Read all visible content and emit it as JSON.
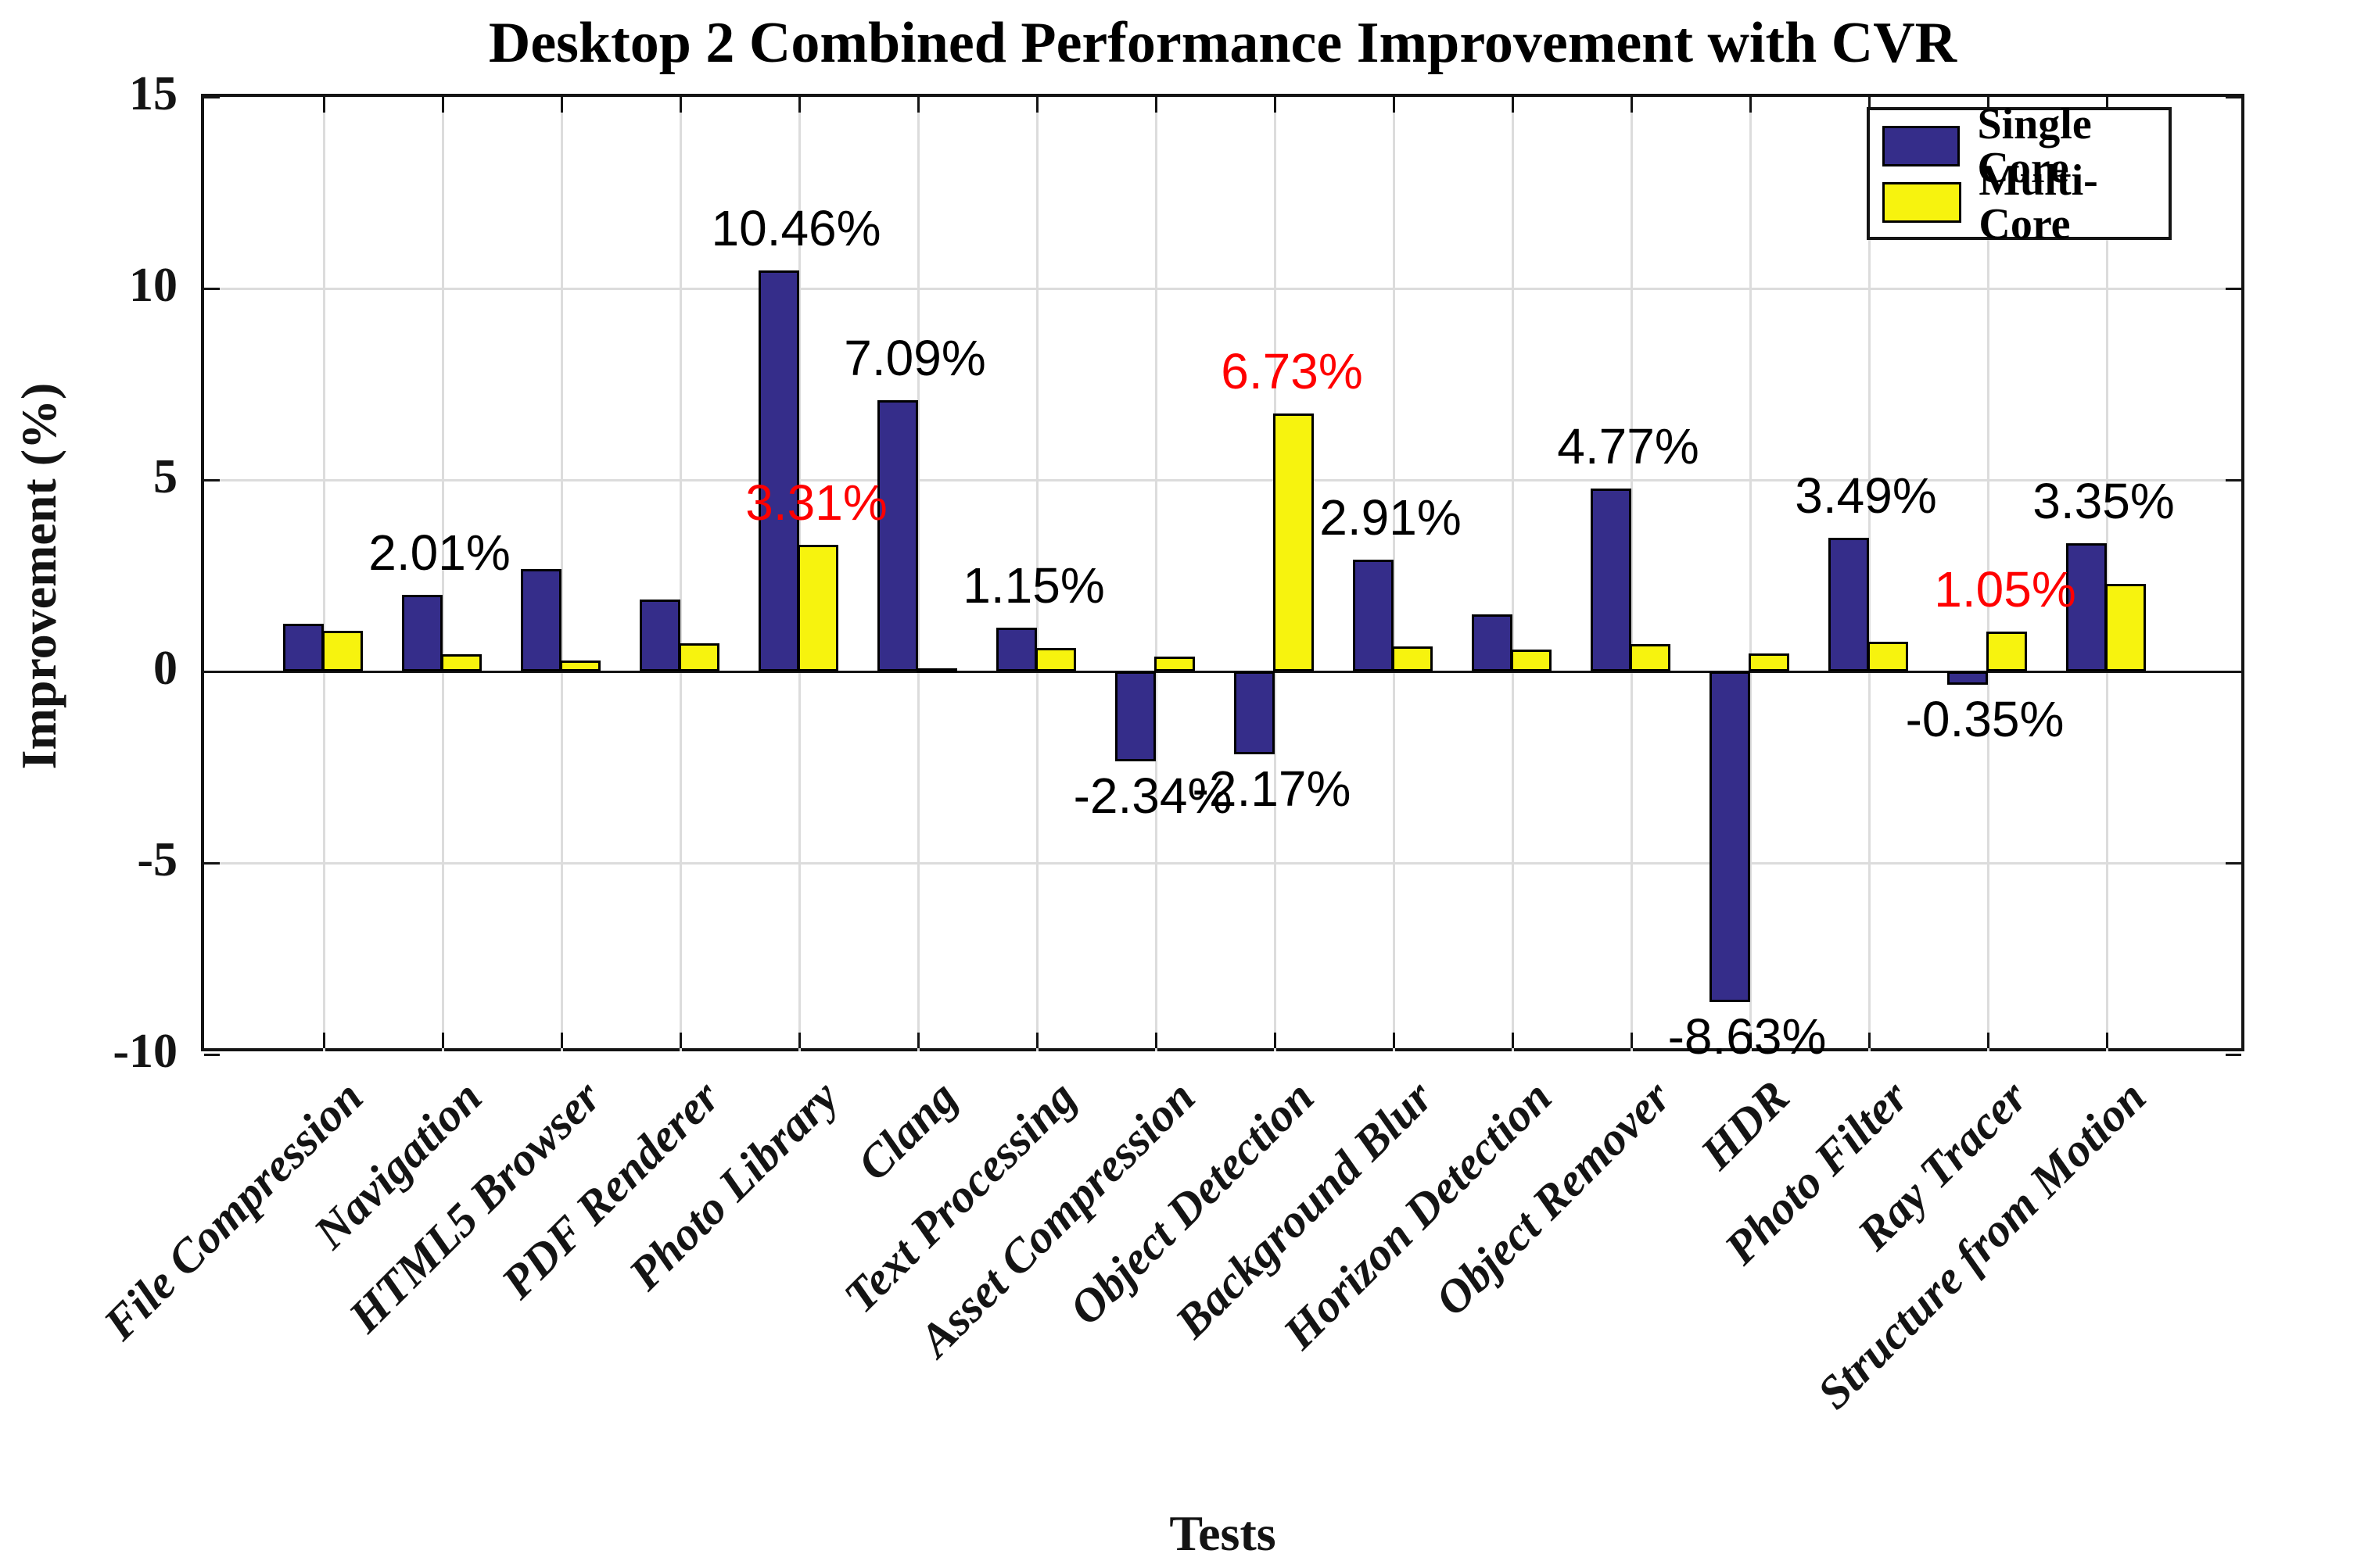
{
  "title": "Desktop 2 Combined Performance Improvement with CVR",
  "x_axis_label": "Tests",
  "y_axis_label": "Improvement (%)",
  "y_tick_labels": [
    "15",
    "10",
    "5",
    "0",
    "-5",
    "-10"
  ],
  "legend": {
    "items": [
      {
        "label": "Single Core",
        "series": "single"
      },
      {
        "label": "Multi-Core",
        "series": "multi"
      }
    ]
  },
  "colors": {
    "single": "#352D8A",
    "multi": "#F7F30E",
    "label_black": "#000000",
    "label_red": "#FF0000",
    "gridline": "#DCDCDC",
    "axis": "#141414",
    "background": "#FFFFFF"
  },
  "chart_data": {
    "type": "bar",
    "title": "Desktop 2 Combined Performance Improvement with CVR",
    "xlabel": "Tests",
    "ylabel": "Improvement (%)",
    "ylim": [
      -10,
      15
    ],
    "y_tick_values": [
      15,
      10,
      5,
      0,
      -5,
      -10
    ],
    "grid": true,
    "legend_position": "top-right",
    "categories": [
      "File Compression",
      "Navigation",
      "HTML5 Browser",
      "PDF Renderer",
      "Photo Library",
      "Clang",
      "Text Processing",
      "Asset Compression",
      "Object Detection",
      "Background Blur",
      "Horizon Detection",
      "Object Remover",
      "HDR",
      "Photo Filter",
      "Ray Tracer",
      "Structure from Motion"
    ],
    "series": [
      {
        "name": "Single Core",
        "key": "single",
        "values": [
          1.25,
          2.01,
          2.68,
          1.88,
          10.46,
          7.09,
          1.15,
          -2.34,
          -2.17,
          2.91,
          1.48,
          4.77,
          -8.63,
          3.49,
          -0.35,
          3.35
        ]
      },
      {
        "name": "Multi-Core",
        "key": "multi",
        "values": [
          1.06,
          0.45,
          0.28,
          0.73,
          3.31,
          0.01,
          0.61,
          0.38,
          6.73,
          0.65,
          0.57,
          0.72,
          0.47,
          0.78,
          1.05,
          2.28
        ]
      }
    ],
    "annotations": [
      {
        "category_index": 1,
        "series": "single",
        "text": "2.01%",
        "color": "black"
      },
      {
        "category_index": 4,
        "series": "single",
        "text": "10.46%",
        "color": "black"
      },
      {
        "category_index": 4,
        "series": "multi",
        "text": "3.31%",
        "color": "red"
      },
      {
        "category_index": 5,
        "series": "single",
        "text": "7.09%",
        "color": "black"
      },
      {
        "category_index": 6,
        "series": "single",
        "text": "1.15%",
        "color": "black"
      },
      {
        "category_index": 7,
        "series": "single",
        "text": "-2.34%",
        "color": "black"
      },
      {
        "category_index": 8,
        "series": "single",
        "text": "-2.17%",
        "color": "black"
      },
      {
        "category_index": 8,
        "series": "multi",
        "text": "6.73%",
        "color": "red"
      },
      {
        "category_index": 9,
        "series": "single",
        "text": "2.91%",
        "color": "black"
      },
      {
        "category_index": 11,
        "series": "single",
        "text": "4.77%",
        "color": "black"
      },
      {
        "category_index": 12,
        "series": "single",
        "text": "-8.63%",
        "color": "black"
      },
      {
        "category_index": 13,
        "series": "single",
        "text": "3.49%",
        "color": "black"
      },
      {
        "category_index": 14,
        "series": "single",
        "text": "-0.35%",
        "color": "black"
      },
      {
        "category_index": 14,
        "series": "multi",
        "text": "1.05%",
        "color": "red"
      },
      {
        "category_index": 15,
        "series": "single",
        "text": "3.35%",
        "color": "black"
      }
    ]
  }
}
